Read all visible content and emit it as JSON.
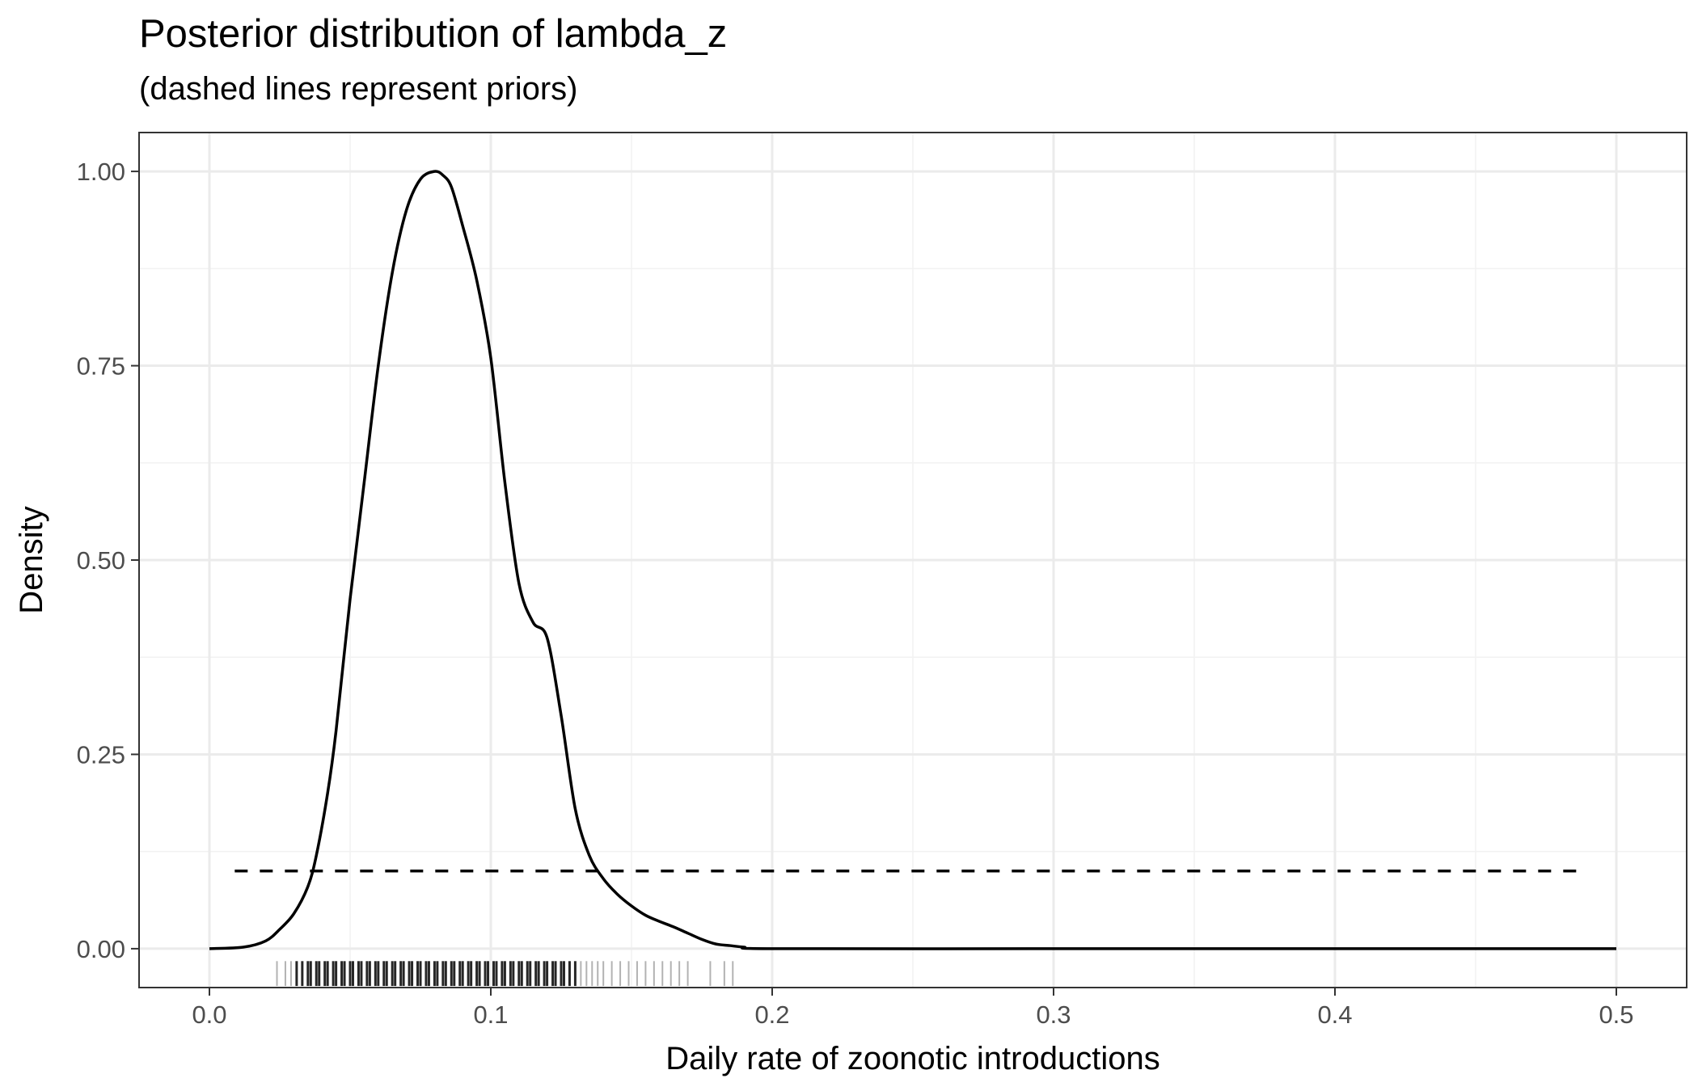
{
  "chart_data": {
    "type": "line",
    "title": "Posterior distribution of lambda_z",
    "subtitle": "(dashed lines represent priors)",
    "xlabel": "Daily rate of zoonotic introductions",
    "ylabel": "Density",
    "xlim": [
      -0.025,
      0.525
    ],
    "ylim": [
      -0.05,
      1.05
    ],
    "x_ticks": [
      0.0,
      0.1,
      0.2,
      0.3,
      0.4,
      0.5
    ],
    "x_tick_labels": [
      "0.0",
      "0.1",
      "0.2",
      "0.3",
      "0.4",
      "0.5"
    ],
    "y_ticks": [
      0.0,
      0.25,
      0.5,
      0.75,
      1.0
    ],
    "y_tick_labels": [
      "0.00",
      "0.25",
      "0.50",
      "0.75",
      "1.00"
    ],
    "grid": true,
    "series": [
      {
        "style": "solid",
        "color": "#000000",
        "x": [
          0.0,
          0.012,
          0.02,
          0.025,
          0.03,
          0.035,
          0.038,
          0.042,
          0.045,
          0.05,
          0.055,
          0.06,
          0.065,
          0.07,
          0.075,
          0.08,
          0.083,
          0.086,
          0.09,
          0.095,
          0.1,
          0.105,
          0.11,
          0.115,
          0.12,
          0.125,
          0.13,
          0.135,
          0.14,
          0.145,
          0.15,
          0.155,
          0.16,
          0.165,
          0.17,
          0.175,
          0.18,
          0.185,
          0.19,
          0.2,
          0.3,
          0.4,
          0.5
        ],
        "y": [
          0.0,
          0.002,
          0.01,
          0.025,
          0.045,
          0.08,
          0.12,
          0.2,
          0.28,
          0.45,
          0.6,
          0.75,
          0.87,
          0.95,
          0.99,
          1.0,
          0.995,
          0.98,
          0.93,
          0.86,
          0.76,
          0.6,
          0.47,
          0.42,
          0.4,
          0.3,
          0.18,
          0.12,
          0.09,
          0.07,
          0.055,
          0.043,
          0.035,
          0.028,
          0.02,
          0.012,
          0.006,
          0.004,
          0.002,
          0.0,
          0.0,
          0.0,
          0.0
        ]
      },
      {
        "style": "dashed",
        "color": "#000000",
        "x": [
          0.009,
          0.487
        ],
        "y": [
          0.1,
          0.1
        ]
      }
    ],
    "rug": {
      "color": "#000000",
      "x": [
        0.024,
        0.027,
        0.029,
        0.031,
        0.033,
        0.035,
        0.036,
        0.038,
        0.039,
        0.041,
        0.042,
        0.044,
        0.045,
        0.047,
        0.048,
        0.05,
        0.051,
        0.053,
        0.054,
        0.056,
        0.057,
        0.059,
        0.06,
        0.062,
        0.063,
        0.065,
        0.066,
        0.068,
        0.069,
        0.071,
        0.072,
        0.074,
        0.075,
        0.077,
        0.078,
        0.08,
        0.081,
        0.083,
        0.084,
        0.086,
        0.087,
        0.089,
        0.09,
        0.092,
        0.093,
        0.095,
        0.096,
        0.098,
        0.099,
        0.101,
        0.102,
        0.104,
        0.105,
        0.107,
        0.108,
        0.11,
        0.111,
        0.113,
        0.114,
        0.116,
        0.117,
        0.119,
        0.12,
        0.122,
        0.123,
        0.125,
        0.126,
        0.128,
        0.13,
        0.132,
        0.134,
        0.136,
        0.138,
        0.14,
        0.143,
        0.146,
        0.149,
        0.152,
        0.155,
        0.158,
        0.161,
        0.164,
        0.167,
        0.17,
        0.178,
        0.183,
        0.186
      ]
    }
  }
}
